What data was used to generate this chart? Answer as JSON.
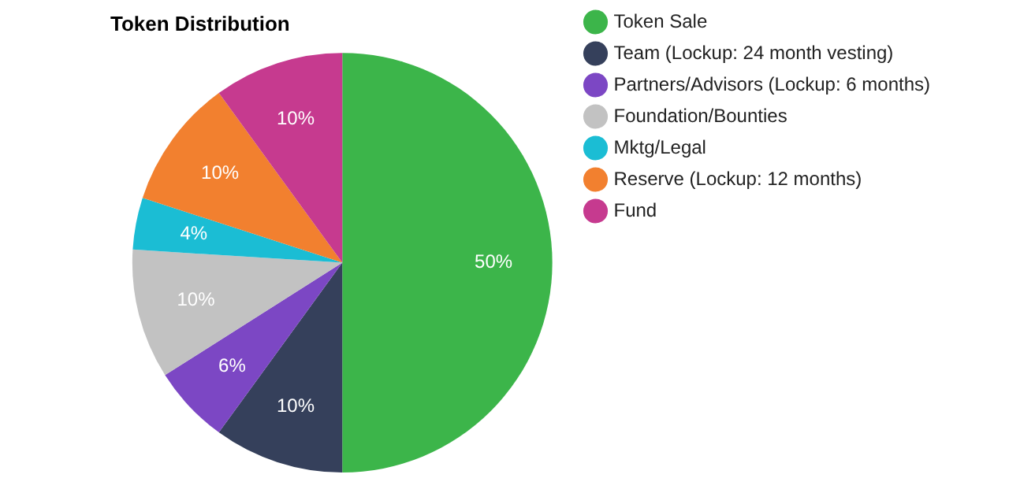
{
  "chart_data": {
    "type": "pie",
    "title": "Token Distribution",
    "categories": [
      "Token Sale",
      "Team (Lockup: 24 month vesting)",
      "Partners/Advisors (Lockup: 6 months)",
      "Foundation/Bounties",
      "Mktg/Legal",
      "Reserve (Lockup: 12 months)",
      "Fund"
    ],
    "values": [
      50,
      10,
      6,
      10,
      4,
      10,
      10
    ],
    "colors": [
      "#3cb54a",
      "#35405b",
      "#7c47c4",
      "#c2c2c2",
      "#1bbdd4",
      "#f2802f",
      "#c63a8f"
    ],
    "value_labels": [
      "50%",
      "10%",
      "6%",
      "10%",
      "4%",
      "10%",
      "10%"
    ],
    "legend": "right"
  }
}
